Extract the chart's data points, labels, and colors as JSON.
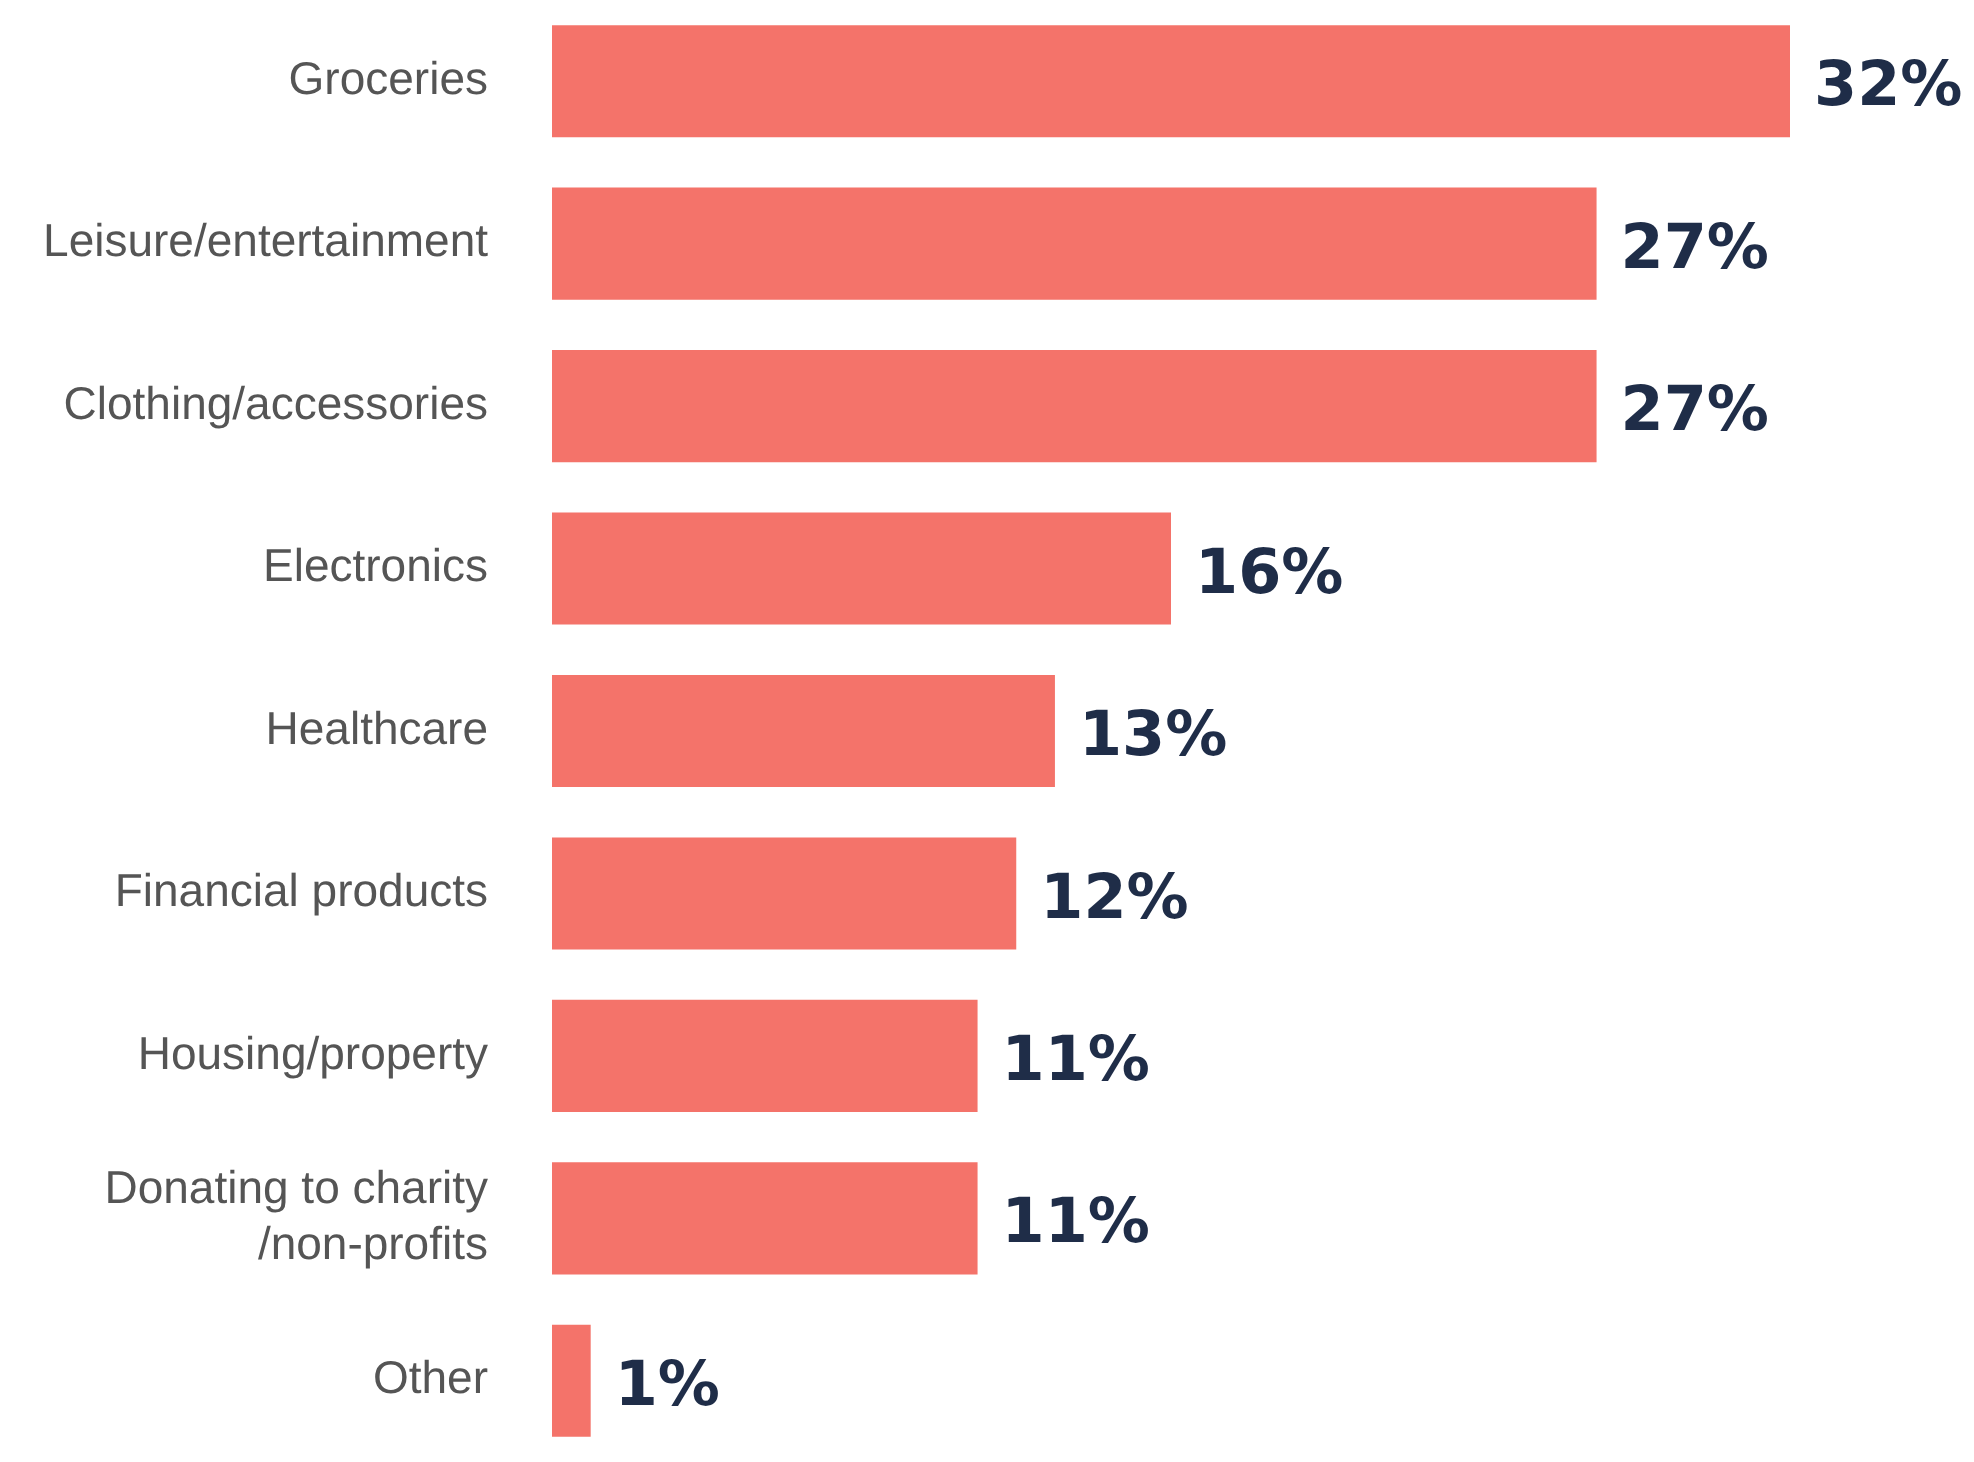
{
  "chart_data": {
    "type": "bar",
    "orientation": "horizontal",
    "categories": [
      "Groceries",
      "Leisure/entertainment",
      "Clothing/accessories",
      "Electronics",
      "Healthcare",
      "Financial products",
      "Housing/property",
      "Donating to charity\n/non-profits",
      "Other"
    ],
    "values": [
      32,
      27,
      27,
      16,
      13,
      12,
      11,
      11,
      1
    ],
    "value_labels": [
      "32%",
      "27%",
      "27%",
      "16%",
      "13%",
      "12%",
      "11%",
      "11%",
      "1%"
    ],
    "color": "#f4736a",
    "legend": false
  }
}
